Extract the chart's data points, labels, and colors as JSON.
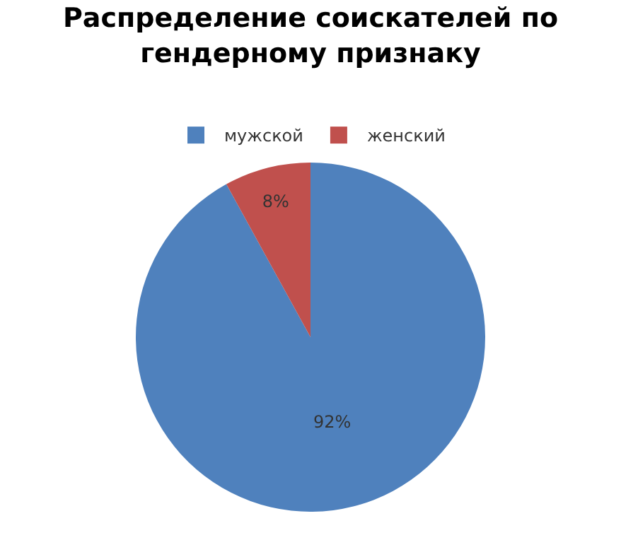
{
  "chart_data": {
    "type": "pie",
    "title": "Распределение соискателей по\nгендерному признаку",
    "categories": [
      "мужской",
      "женский"
    ],
    "values": [
      92,
      8
    ],
    "value_labels": [
      "92%",
      "8%"
    ],
    "colors": [
      "#4f81bd",
      "#c0504d"
    ],
    "legend": "top"
  }
}
